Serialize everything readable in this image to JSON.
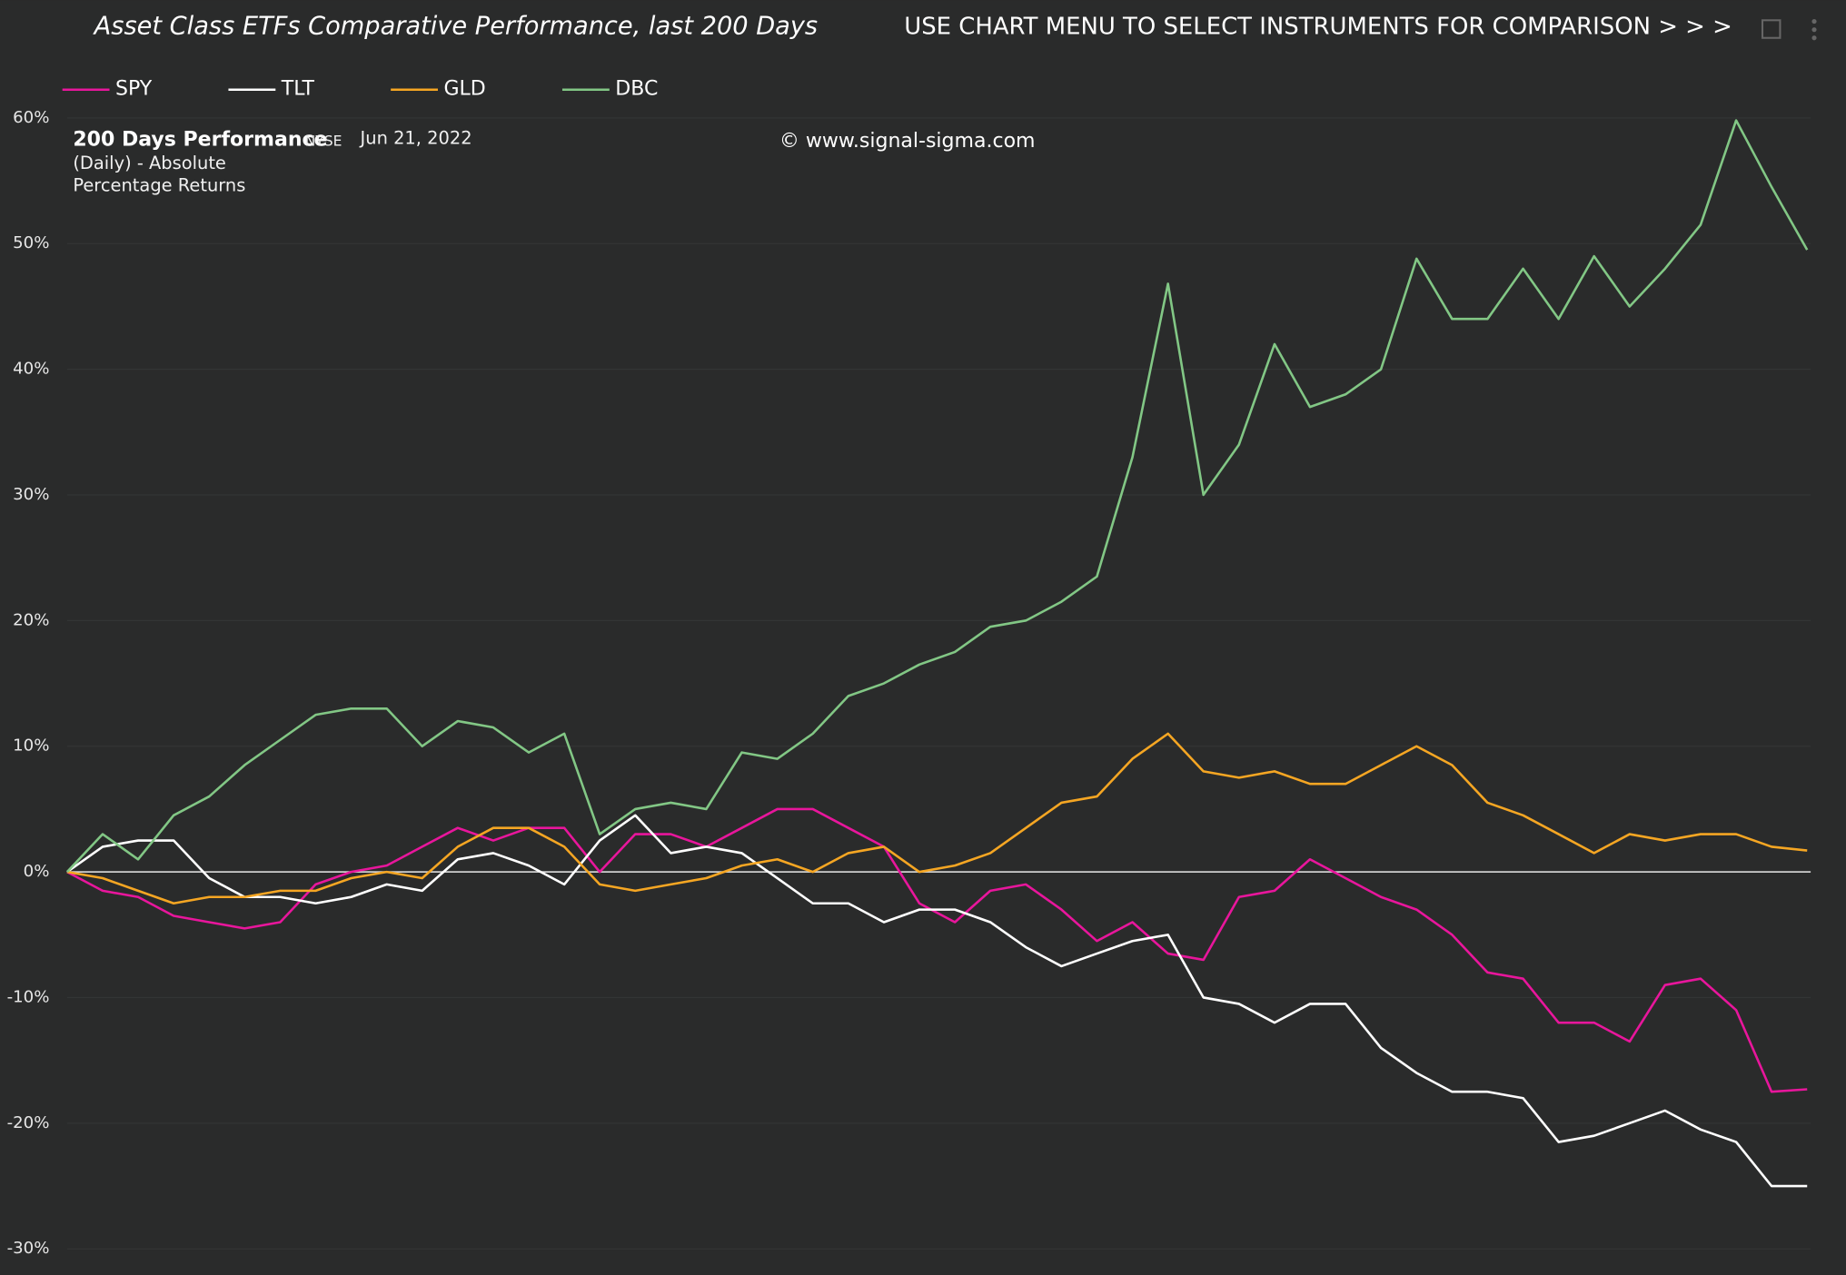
{
  "chart_data": {
    "type": "line",
    "title": "Asset Class ETFs Comparative Performance, last 200 Days",
    "menu_note": "USE CHART MENU TO SELECT INSTRUMENTS FOR COMPARISON > > >",
    "panel_title": "200 Days Performance",
    "exchange": "NYSE",
    "date": "Jun 21, 2022",
    "panel_subtitle": [
      "(Daily) - Absolute",
      "Percentage Returns"
    ],
    "watermark": "© www.signal-sigma.com",
    "ylim": [
      -30,
      60
    ],
    "yticks": [
      {
        "value": 60,
        "label": "60%"
      },
      {
        "value": 50,
        "label": "50%"
      },
      {
        "value": 40,
        "label": "40%"
      },
      {
        "value": 30,
        "label": "30%"
      },
      {
        "value": 20,
        "label": "20%"
      },
      {
        "value": 10,
        "label": "10%"
      },
      {
        "value": 0,
        "label": "0%"
      },
      {
        "value": -10,
        "label": "-10%"
      },
      {
        "value": -20,
        "label": "-20%"
      },
      {
        "value": -30,
        "label": "-30%"
      }
    ],
    "grid": true,
    "legend": "top-left",
    "series": [
      {
        "name": "SPY",
        "color": "#e8169c",
        "values": [
          0,
          -1.5,
          -2,
          -3.5,
          -4,
          -4.5,
          -4,
          -1,
          0,
          0.5,
          2,
          3.5,
          2.5,
          3.5,
          3.5,
          0,
          3,
          3,
          2,
          3.5,
          5,
          5,
          3.5,
          2,
          -2.5,
          -4,
          -1.5,
          -1,
          -3,
          -5.5,
          -4,
          -6.5,
          -7,
          -2,
          -1.5,
          1,
          -0.5,
          -2,
          -3,
          -5,
          -8,
          -8.5,
          -12,
          -12,
          -13.5,
          -9,
          -8.5,
          -11,
          -17.5,
          -17.3
        ]
      },
      {
        "name": "TLT",
        "color": "#ffffff",
        "values": [
          0,
          2,
          2.5,
          2.5,
          -0.5,
          -2,
          -2,
          -2.5,
          -2,
          -1,
          -1.5,
          1,
          1.5,
          0.5,
          -1,
          2.5,
          4.5,
          1.5,
          2,
          1.5,
          -0.5,
          -2.5,
          -2.5,
          -4,
          -3,
          -3,
          -4,
          -6,
          -7.5,
          -6.5,
          -5.5,
          -5,
          -10,
          -10.5,
          -12,
          -10.5,
          -10.5,
          -14,
          -16,
          -17.5,
          -17.5,
          -18,
          -21.5,
          -21,
          -20,
          -19,
          -20.5,
          -21.5,
          -25,
          -25
        ]
      },
      {
        "name": "GLD",
        "color": "#f5a623",
        "values": [
          0,
          -0.5,
          -1.5,
          -2.5,
          -2,
          -2,
          -1.5,
          -1.5,
          -0.5,
          0,
          -0.5,
          2,
          3.5,
          3.5,
          2,
          -1,
          -1.5,
          -1,
          -0.5,
          0.5,
          1,
          0,
          1.5,
          2,
          0,
          0.5,
          1.5,
          3.5,
          5.5,
          6,
          9,
          11,
          8,
          7.5,
          8,
          7,
          7,
          8.5,
          10,
          8.5,
          5.5,
          4.5,
          3,
          1.5,
          3,
          2.5,
          3,
          3,
          2,
          1.7
        ]
      },
      {
        "name": "DBC",
        "color": "#82c785",
        "values": [
          0,
          3,
          1,
          4.5,
          6,
          8.5,
          10.5,
          12.5,
          13,
          13,
          10,
          12,
          11.5,
          9.5,
          11,
          3,
          5,
          5.5,
          5,
          9.5,
          9,
          11,
          14,
          15,
          16.5,
          17.5,
          19.5,
          20,
          21.5,
          23.5,
          33,
          46.8,
          30,
          34,
          42,
          37,
          38,
          40,
          48.8,
          44,
          44,
          48,
          44,
          49,
          45,
          48,
          51.5,
          59.8,
          54.5,
          49.5
        ]
      }
    ]
  }
}
